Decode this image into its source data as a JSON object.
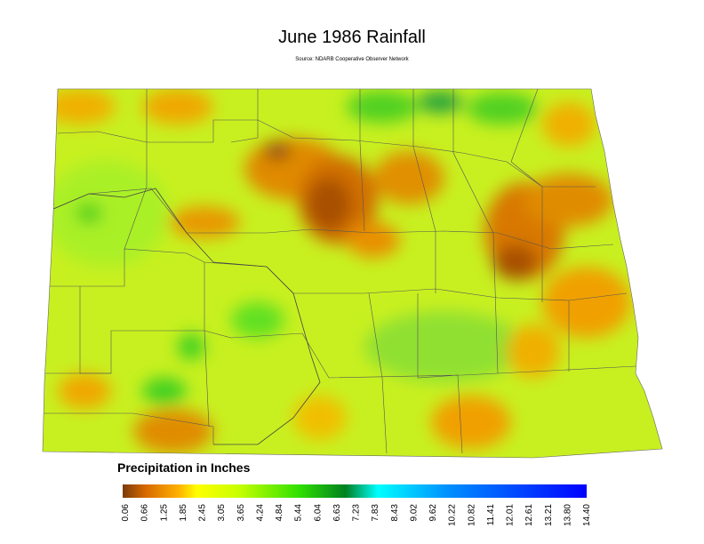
{
  "header": {
    "title": "June 1986 Rainfall",
    "source": "Source: NDARB Cooperative Observer Network"
  },
  "legend": {
    "title": "Precipitation in Inches",
    "ticks": [
      "0.06",
      "0.66",
      "1.25",
      "1.85",
      "2.45",
      "3.05",
      "3.65",
      "4.24",
      "4.84",
      "5.44",
      "6.04",
      "6.63",
      "7.23",
      "7.83",
      "8.43",
      "9.02",
      "9.62",
      "10.22",
      "10.82",
      "11.41",
      "12.01",
      "12.61",
      "13.21",
      "13.80",
      "14.40"
    ]
  }
}
